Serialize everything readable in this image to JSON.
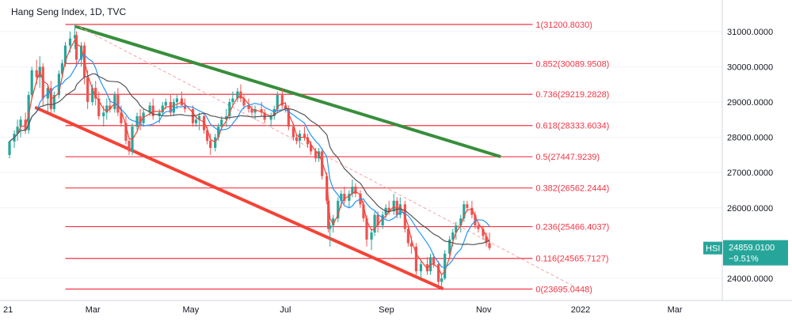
{
  "header": {
    "title": "Hang Seng Index, 1D, TVC"
  },
  "colors": {
    "candle_up": "#26a69a",
    "candle_down": "#ef5350",
    "fib_line": "#f23645",
    "green_channel": "#388e3c",
    "red_channel": "#f44336",
    "ma_fast": "#f44336",
    "ma_mid": "#2196f3",
    "ma_slow": "#555555",
    "badge": "#26a69a",
    "price_grid": "#e0e3eb"
  },
  "chart_data": {
    "type": "candlestick",
    "title": "Hang Seng Index, 1D, TVC",
    "symbol": "HSI",
    "last_price": "24859.0100",
    "change_pct": "−9.51%",
    "y_axis": {
      "range": [
        23550,
        31400
      ],
      "ticks": [
        {
          "value": 24000,
          "label": "24000.0000"
        },
        {
          "value": 26000,
          "label": "26000.0000"
        },
        {
          "value": 27000,
          "label": "27000.0000"
        },
        {
          "value": 28000,
          "label": "28000.0000"
        },
        {
          "value": 29000,
          "label": "29000.0000"
        },
        {
          "value": 30000,
          "label": "30000.0000"
        },
        {
          "value": 31000,
          "label": "31000.0000"
        }
      ]
    },
    "x_axis": {
      "range": [
        "2021-01-08",
        "2022-03-31"
      ],
      "ticks": [
        {
          "date": "2021-01-01",
          "label": "21"
        },
        {
          "date": "2021-03-01",
          "label": "Mar"
        },
        {
          "date": "2021-05-01",
          "label": "May"
        },
        {
          "date": "2021-07-01",
          "label": "Jul"
        },
        {
          "date": "2021-09-01",
          "label": "Sep"
        },
        {
          "date": "2021-11-01",
          "label": "Nov"
        },
        {
          "date": "2022-01-01",
          "label": "2022"
        },
        {
          "date": "2022-03-01",
          "label": "Mar"
        }
      ]
    },
    "fib_levels": [
      {
        "label": "1(31200.8030)",
        "value": 31200.803
      },
      {
        "label": "0.852(30089.9508)",
        "value": 30089.9508
      },
      {
        "label": "0.736(29219.2828)",
        "value": 29219.2828
      },
      {
        "label": "0.618(28333.6034)",
        "value": 28333.6034
      },
      {
        "label": "0.5(27447.9239)",
        "value": 27447.9239
      },
      {
        "label": "0.382(26562.2444)",
        "value": 26562.2444
      },
      {
        "label": "0.236(25466.4037)",
        "value": 25466.4037
      },
      {
        "label": "0.116(24565.7127)",
        "value": 24565.7127
      },
      {
        "label": "0(23695.0448)",
        "value": 23695.0448
      }
    ],
    "fib_range": {
      "from": "2021-02-18",
      "to": "2021-11-30"
    },
    "trendlines": [
      {
        "name": "green-channel",
        "from": {
          "date": "2021-02-18",
          "value": 31150
        },
        "to": {
          "date": "2021-11-12",
          "value": 27450
        }
      },
      {
        "name": "red-channel",
        "from": {
          "date": "2021-01-24",
          "value": 28850
        },
        "to": {
          "date": "2021-10-07",
          "value": 23700
        }
      },
      {
        "name": "dotted-trend",
        "from": {
          "date": "2021-02-18",
          "value": 31200
        },
        "to": {
          "date": "2021-12-31",
          "value": 23700
        }
      }
    ],
    "candles": [
      [
        "2021-01-08",
        27500,
        27900,
        27400,
        27880
      ],
      [
        "2021-01-11",
        27880,
        28200,
        27700,
        28100
      ],
      [
        "2021-01-13",
        28100,
        28500,
        27900,
        28300
      ],
      [
        "2021-01-15",
        28300,
        28600,
        28000,
        28500
      ],
      [
        "2021-01-18",
        28500,
        28700,
        28100,
        28200
      ],
      [
        "2021-01-20",
        28200,
        29300,
        28100,
        29200
      ],
      [
        "2021-01-22",
        29200,
        30000,
        29100,
        29900
      ],
      [
        "2021-01-25",
        29900,
        30200,
        29500,
        29700
      ],
      [
        "2021-01-27",
        29700,
        30300,
        29400,
        30000
      ],
      [
        "2021-01-29",
        30000,
        30100,
        28900,
        29100
      ],
      [
        "2021-02-01",
        29100,
        29500,
        28700,
        29400
      ],
      [
        "2021-02-03",
        29400,
        29600,
        28600,
        28800
      ],
      [
        "2021-02-05",
        28800,
        29300,
        28700,
        29200
      ],
      [
        "2021-02-08",
        29200,
        29900,
        29100,
        29800
      ],
      [
        "2021-02-10",
        29800,
        30200,
        29700,
        30100
      ],
      [
        "2021-02-12",
        30100,
        30700,
        30000,
        30600
      ],
      [
        "2021-02-15",
        30600,
        31000,
        30400,
        30800
      ],
      [
        "2021-02-18",
        30800,
        31200,
        30500,
        30900
      ],
      [
        "2021-02-19",
        30900,
        31000,
        30000,
        30200
      ],
      [
        "2021-02-22",
        30200,
        30700,
        30000,
        30600
      ],
      [
        "2021-02-24",
        30600,
        30700,
        29500,
        29700
      ],
      [
        "2021-02-26",
        29700,
        29900,
        28800,
        29000
      ],
      [
        "2021-03-01",
        29000,
        29500,
        28900,
        29400
      ],
      [
        "2021-03-03",
        29400,
        29600,
        28900,
        29100
      ],
      [
        "2021-03-05",
        29100,
        29300,
        28500,
        28600
      ],
      [
        "2021-03-08",
        28600,
        28900,
        28300,
        28700
      ],
      [
        "2021-03-10",
        28700,
        29100,
        28500,
        28900
      ],
      [
        "2021-03-12",
        28900,
        29100,
        28700,
        28800
      ],
      [
        "2021-03-15",
        28800,
        29300,
        28700,
        29200
      ],
      [
        "2021-03-17",
        29200,
        29400,
        28600,
        28700
      ],
      [
        "2021-03-19",
        28700,
        28900,
        28300,
        28400
      ],
      [
        "2021-03-22",
        28400,
        28600,
        27800,
        27900
      ],
      [
        "2021-03-24",
        27900,
        28000,
        27500,
        27600
      ],
      [
        "2021-03-26",
        27600,
        28400,
        27500,
        28300
      ],
      [
        "2021-03-29",
        28300,
        28700,
        28200,
        28600
      ],
      [
        "2021-03-31",
        28600,
        28800,
        28200,
        28400
      ],
      [
        "2021-04-02",
        28400,
        28800,
        28300,
        28700
      ],
      [
        "2021-04-06",
        28700,
        29000,
        28600,
        28900
      ],
      [
        "2021-04-08",
        28900,
        29100,
        28500,
        28600
      ],
      [
        "2021-04-12",
        28600,
        28800,
        28400,
        28700
      ],
      [
        "2021-04-14",
        28700,
        29000,
        28600,
        28900
      ],
      [
        "2021-04-16",
        28900,
        29100,
        28800,
        29000
      ],
      [
        "2021-04-19",
        29000,
        29200,
        28600,
        28700
      ],
      [
        "2021-04-21",
        28700,
        29100,
        28600,
        29000
      ],
      [
        "2021-04-23",
        29000,
        29200,
        28800,
        29100
      ],
      [
        "2021-04-26",
        29100,
        29300,
        28900,
        28900
      ],
      [
        "2021-04-28",
        28900,
        29100,
        28700,
        28800
      ],
      [
        "2021-05-03",
        28800,
        28900,
        28300,
        28400
      ],
      [
        "2021-05-05",
        28400,
        28600,
        28300,
        28500
      ],
      [
        "2021-05-07",
        28500,
        28700,
        28200,
        28600
      ],
      [
        "2021-05-10",
        28600,
        28700,
        28100,
        28200
      ],
      [
        "2021-05-12",
        28200,
        28300,
        27800,
        27900
      ],
      [
        "2021-05-14",
        27900,
        28100,
        27500,
        27700
      ],
      [
        "2021-05-17",
        27700,
        28100,
        27600,
        28000
      ],
      [
        "2021-05-19",
        28000,
        28400,
        27900,
        28300
      ],
      [
        "2021-05-21",
        28300,
        28600,
        28200,
        28500
      ],
      [
        "2021-05-24",
        28500,
        28800,
        28300,
        28600
      ],
      [
        "2021-05-26",
        28600,
        29100,
        28500,
        29000
      ],
      [
        "2021-05-28",
        29000,
        29300,
        28900,
        29100
      ],
      [
        "2021-05-31",
        29100,
        29400,
        29000,
        29300
      ],
      [
        "2021-06-02",
        29300,
        29500,
        29000,
        29100
      ],
      [
        "2021-06-04",
        29100,
        29200,
        28800,
        28900
      ],
      [
        "2021-06-07",
        28900,
        29100,
        28700,
        28800
      ],
      [
        "2021-06-09",
        28800,
        28900,
        28600,
        28700
      ],
      [
        "2021-06-11",
        28700,
        28900,
        28500,
        28800
      ],
      [
        "2021-06-15",
        28800,
        29000,
        28600,
        28700
      ],
      [
        "2021-06-17",
        28700,
        28800,
        28400,
        28500
      ],
      [
        "2021-06-21",
        28500,
        28700,
        28300,
        28600
      ],
      [
        "2021-06-23",
        28600,
        28900,
        28500,
        28800
      ],
      [
        "2021-06-25",
        28800,
        29300,
        28700,
        29200
      ],
      [
        "2021-06-28",
        29200,
        29400,
        28800,
        28900
      ],
      [
        "2021-06-30",
        28900,
        29000,
        28700,
        28800
      ],
      [
        "2021-07-02",
        28800,
        28900,
        28200,
        28300
      ],
      [
        "2021-07-05",
        28300,
        28400,
        27900,
        28000
      ],
      [
        "2021-07-07",
        28000,
        28100,
        27800,
        27900
      ],
      [
        "2021-07-09",
        27900,
        28200,
        27700,
        28100
      ],
      [
        "2021-07-12",
        28100,
        28300,
        27900,
        28000
      ],
      [
        "2021-07-14",
        28000,
        28100,
        27700,
        27800
      ],
      [
        "2021-07-16",
        27800,
        27900,
        27500,
        27600
      ],
      [
        "2021-07-19",
        27600,
        27700,
        27300,
        27400
      ],
      [
        "2021-07-21",
        27400,
        27700,
        27300,
        27600
      ],
      [
        "2021-07-23",
        27600,
        27700,
        26800,
        26900
      ],
      [
        "2021-07-26",
        26900,
        27000,
        26100,
        26200
      ],
      [
        "2021-07-27",
        26200,
        26300,
        25300,
        25400
      ],
      [
        "2021-07-28",
        25400,
        25600,
        24900,
        25500
      ],
      [
        "2021-07-30",
        25500,
        25800,
        25300,
        25700
      ],
      [
        "2021-08-02",
        25700,
        26300,
        25600,
        26200
      ],
      [
        "2021-08-04",
        26200,
        26500,
        26000,
        26400
      ],
      [
        "2021-08-06",
        26400,
        26600,
        26100,
        26200
      ],
      [
        "2021-08-09",
        26200,
        26500,
        26000,
        26400
      ],
      [
        "2021-08-11",
        26400,
        26800,
        26300,
        26600
      ],
      [
        "2021-08-13",
        26600,
        26700,
        26300,
        26400
      ],
      [
        "2021-08-16",
        26400,
        26500,
        26000,
        26100
      ],
      [
        "2021-08-18",
        26100,
        26200,
        25600,
        25700
      ],
      [
        "2021-08-20",
        25700,
        25800,
        24900,
        25100
      ],
      [
        "2021-08-23",
        25100,
        25400,
        24800,
        25300
      ],
      [
        "2021-08-25",
        25300,
        25900,
        25200,
        25800
      ],
      [
        "2021-08-27",
        25800,
        25900,
        25300,
        25500
      ],
      [
        "2021-08-30",
        25500,
        25900,
        25400,
        25800
      ],
      [
        "2021-09-01",
        25800,
        26100,
        25700,
        26000
      ],
      [
        "2021-09-03",
        26000,
        26200,
        25800,
        25900
      ],
      [
        "2021-09-06",
        25900,
        26400,
        25800,
        26200
      ],
      [
        "2021-09-08",
        26200,
        26300,
        25700,
        25800
      ],
      [
        "2021-09-10",
        25800,
        26300,
        25700,
        26100
      ],
      [
        "2021-09-13",
        26100,
        26200,
        25300,
        25400
      ],
      [
        "2021-09-15",
        25400,
        25500,
        24900,
        25000
      ],
      [
        "2021-09-17",
        25000,
        25200,
        24700,
        24900
      ],
      [
        "2021-09-20",
        24900,
        25000,
        24100,
        24200
      ],
      [
        "2021-09-23",
        24200,
        24500,
        24000,
        24400
      ],
      [
        "2021-09-27",
        24400,
        24600,
        24100,
        24200
      ],
      [
        "2021-09-29",
        24200,
        24700,
        24100,
        24600
      ],
      [
        "2021-10-01",
        24600,
        24700,
        24300,
        24400
      ],
      [
        "2021-10-04",
        24400,
        24500,
        23800,
        23900
      ],
      [
        "2021-10-06",
        23900,
        24100,
        23700,
        24000
      ],
      [
        "2021-10-08",
        24000,
        24800,
        23950,
        24700
      ],
      [
        "2021-10-11",
        24700,
        25200,
        24600,
        25100
      ],
      [
        "2021-10-13",
        25100,
        25400,
        24900,
        25300
      ],
      [
        "2021-10-15",
        25300,
        25600,
        25100,
        25500
      ],
      [
        "2021-10-18",
        25500,
        25800,
        25300,
        25700
      ],
      [
        "2021-10-20",
        25700,
        26200,
        25600,
        26100
      ],
      [
        "2021-10-22",
        26100,
        26200,
        25900,
        26000
      ],
      [
        "2021-10-25",
        26000,
        26200,
        25700,
        25800
      ],
      [
        "2021-10-27",
        25800,
        25900,
        25400,
        25500
      ],
      [
        "2021-10-29",
        25500,
        25600,
        25300,
        25400
      ],
      [
        "2021-11-01",
        25400,
        25500,
        25100,
        25200
      ],
      [
        "2021-11-03",
        25200,
        25300,
        24900,
        25000
      ],
      [
        "2021-11-05",
        25000,
        25300,
        24800,
        24859
      ]
    ]
  }
}
